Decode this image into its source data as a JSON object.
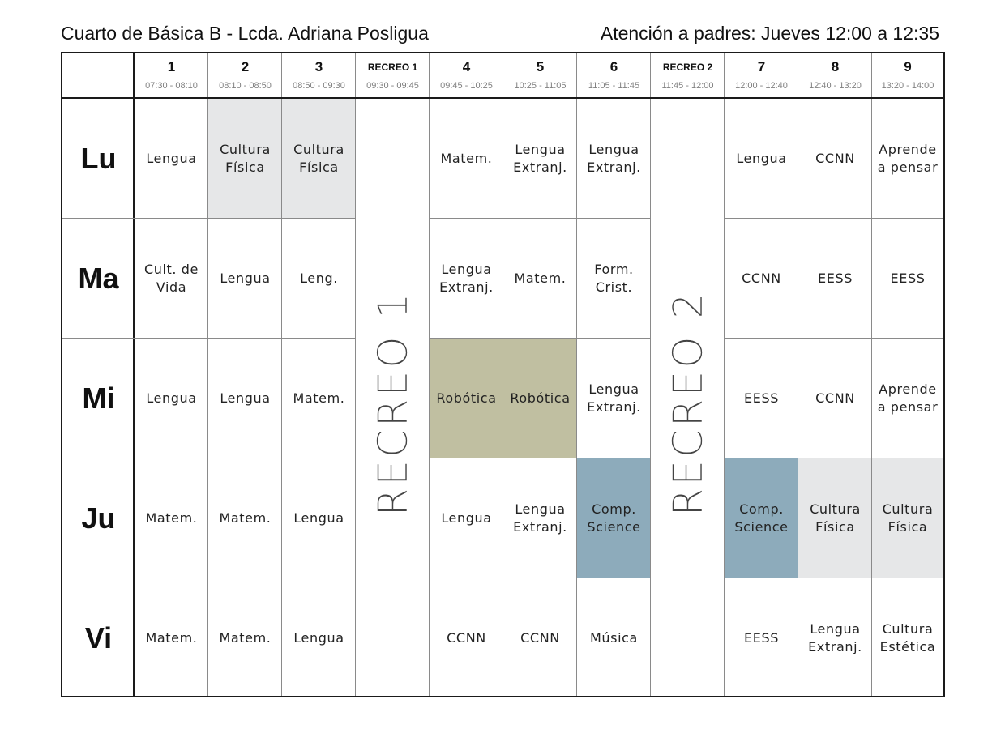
{
  "title_left": "Cuarto de Básica B - Lcda. Adriana Posligua",
  "title_right": "Atención a padres: Jueves 12:00 a 12:35",
  "columns": [
    {
      "label": "1",
      "time": "07:30 - 08:10",
      "kind": "period"
    },
    {
      "label": "2",
      "time": "08:10 - 08:50",
      "kind": "period"
    },
    {
      "label": "3",
      "time": "08:50 - 09:30",
      "kind": "period"
    },
    {
      "label": "RECREO 1",
      "time": "09:30 - 09:45",
      "kind": "break"
    },
    {
      "label": "4",
      "time": "09:45 - 10:25",
      "kind": "period"
    },
    {
      "label": "5",
      "time": "10:25 - 11:05",
      "kind": "period"
    },
    {
      "label": "6",
      "time": "11:05 - 11:45",
      "kind": "period"
    },
    {
      "label": "RECREO 2",
      "time": "11:45 - 12:00",
      "kind": "break"
    },
    {
      "label": "7",
      "time": "12:00 - 12:40",
      "kind": "period"
    },
    {
      "label": "8",
      "time": "12:40 - 13:20",
      "kind": "period"
    },
    {
      "label": "9",
      "time": "13:20 - 14:00",
      "kind": "period"
    }
  ],
  "break_labels": [
    "RECREO 1",
    "RECREO 2"
  ],
  "colors": {
    "cultura_fisica": "#e6e7e8",
    "robotica": "#c0bfa1",
    "comp_science": "#8dabbb",
    "default": "#ffffff"
  },
  "rows": [
    {
      "day": "Lu",
      "cells": [
        {
          "text": "Lengua"
        },
        {
          "text": "Cultura\nFísica",
          "color": "cultura_fisica"
        },
        {
          "text": "Cultura\nFísica",
          "color": "cultura_fisica"
        },
        {
          "text": "Matem."
        },
        {
          "text": "Lengua\nExtranj."
        },
        {
          "text": "Lengua\nExtranj."
        },
        {
          "text": "Lengua"
        },
        {
          "text": "CCNN"
        },
        {
          "text": "Aprende\na pensar"
        }
      ]
    },
    {
      "day": "Ma",
      "cells": [
        {
          "text": "Cult. de\nVida"
        },
        {
          "text": "Lengua"
        },
        {
          "text": "Leng."
        },
        {
          "text": "Lengua\nExtranj."
        },
        {
          "text": "Matem."
        },
        {
          "text": "Form.\nCrist."
        },
        {
          "text": "CCNN"
        },
        {
          "text": "EESS"
        },
        {
          "text": "EESS"
        }
      ]
    },
    {
      "day": "Mi",
      "cells": [
        {
          "text": "Lengua"
        },
        {
          "text": "Lengua"
        },
        {
          "text": "Matem."
        },
        {
          "text": "Robótica",
          "color": "robotica"
        },
        {
          "text": "Robótica",
          "color": "robotica"
        },
        {
          "text": "Lengua\nExtranj."
        },
        {
          "text": "EESS"
        },
        {
          "text": "CCNN"
        },
        {
          "text": "Aprende\na pensar"
        }
      ]
    },
    {
      "day": "Ju",
      "cells": [
        {
          "text": "Matem."
        },
        {
          "text": "Matem."
        },
        {
          "text": "Lengua"
        },
        {
          "text": "Lengua"
        },
        {
          "text": "Lengua\nExtranj."
        },
        {
          "text": "Comp.\nScience",
          "color": "comp_science"
        },
        {
          "text": "Comp.\nScience",
          "color": "comp_science"
        },
        {
          "text": "Cultura\nFísica",
          "color": "cultura_fisica"
        },
        {
          "text": "Cultura\nFísica",
          "color": "cultura_fisica"
        }
      ]
    },
    {
      "day": "Vi",
      "cells": [
        {
          "text": "Matem."
        },
        {
          "text": "Matem."
        },
        {
          "text": "Lengua"
        },
        {
          "text": "CCNN"
        },
        {
          "text": "CCNN"
        },
        {
          "text": "Música"
        },
        {
          "text": "EESS"
        },
        {
          "text": "Lengua\nExtranj."
        },
        {
          "text": "Cultura\nEstética"
        }
      ]
    }
  ]
}
